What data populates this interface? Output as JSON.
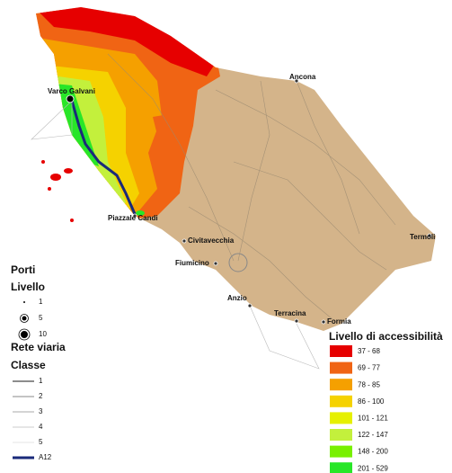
{
  "map": {
    "places": [
      {
        "label": "Ancona"
      },
      {
        "label": "Varco Galvani"
      },
      {
        "label": "Piazzale Candi"
      },
      {
        "label": "Civitavecchia"
      },
      {
        "label": "Termoli"
      },
      {
        "label": "Fiumicino"
      },
      {
        "label": "Anzio"
      },
      {
        "label": "Terracina"
      },
      {
        "label": "Formia"
      }
    ]
  },
  "legend_ports": {
    "title": "Porti",
    "subtitle": "Livello",
    "items": [
      "1",
      "5",
      "10"
    ]
  },
  "legend_roads": {
    "title": "Rete viaria",
    "subtitle": "Classe",
    "items": [
      "1",
      "2",
      "3",
      "4",
      "5",
      "A12"
    ]
  },
  "legend_access": {
    "title": "Livello di accessibilità",
    "items": [
      {
        "label": "37 - 68",
        "color": "#e60000"
      },
      {
        "label": "69 - 77",
        "color": "#f06414"
      },
      {
        "label": "78 - 85",
        "color": "#f5a000"
      },
      {
        "label": "86 - 100",
        "color": "#f5d200"
      },
      {
        "label": "101 - 121",
        "color": "#e6f000"
      },
      {
        "label": "122 - 147",
        "color": "#c3f03c"
      },
      {
        "label": "148 - 200",
        "color": "#78f000"
      },
      {
        "label": "201 - 529",
        "color": "#28e628"
      }
    ]
  }
}
